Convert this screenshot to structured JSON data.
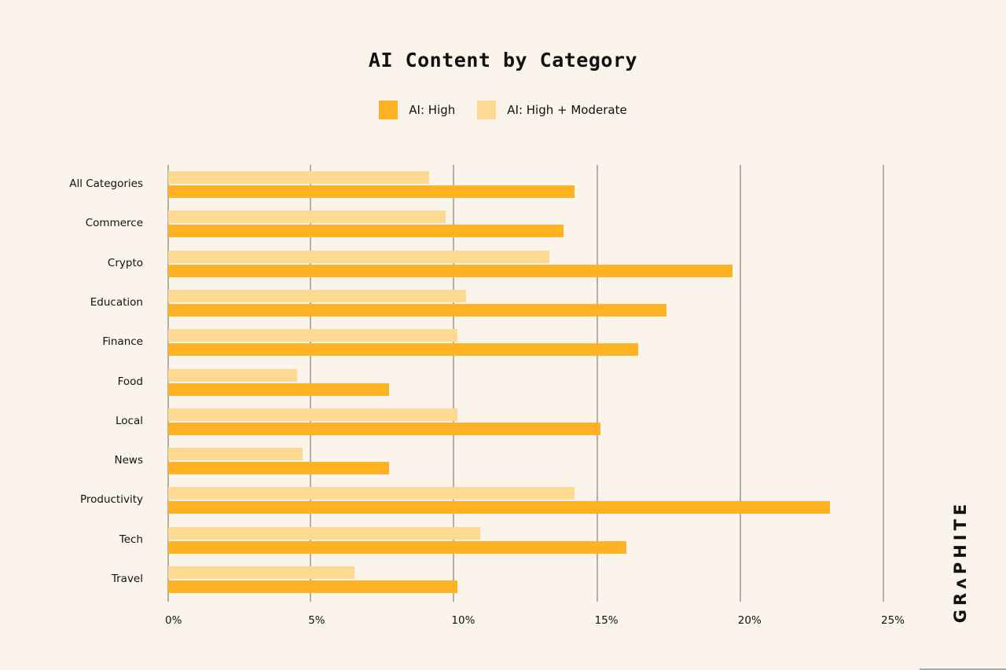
{
  "title": "AI Content by Category",
  "legend": [
    {
      "label": "AI: High",
      "color": "#feb224"
    },
    {
      "label": "AI: High + Moderate",
      "color": "#fed994"
    }
  ],
  "brand": "GRʌPHITE",
  "chart_data": {
    "type": "bar",
    "orientation": "horizontal",
    "title": "AI Content by Category",
    "xlabel": "",
    "ylabel": "",
    "xlim": [
      0,
      25
    ],
    "x_ticks": [
      "0%",
      "5%",
      "10%",
      "15%",
      "20%",
      "25%"
    ],
    "grid": true,
    "legend_position": "top",
    "categories": [
      "All Categories",
      "Commerce",
      "Crypto",
      "Education",
      "Finance",
      "Food",
      "Local",
      "News",
      "Productivity",
      "Tech",
      "Travel"
    ],
    "series": [
      {
        "name": "AI: High + Moderate",
        "color": "#fed994",
        "values": [
          9.1,
          9.7,
          13.3,
          10.4,
          10.1,
          4.5,
          10.1,
          4.7,
          14.2,
          10.9,
          6.5
        ]
      },
      {
        "name": "AI: High",
        "color": "#feb224",
        "values": [
          14.2,
          13.8,
          19.7,
          17.4,
          16.4,
          7.7,
          15.1,
          7.7,
          23.1,
          16.0,
          10.1
        ]
      }
    ]
  }
}
